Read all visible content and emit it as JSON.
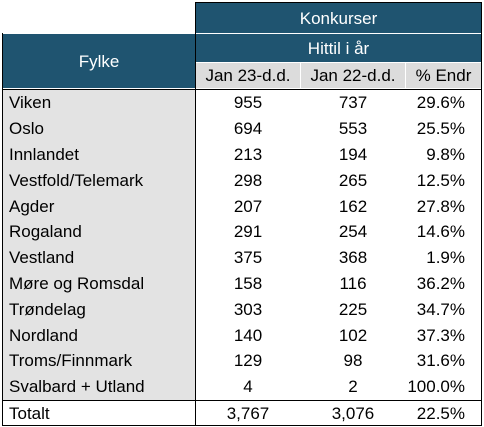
{
  "table": {
    "header_group": "Konkurser",
    "header_sub": "Hittil i år",
    "col_fylke": "Fylke",
    "columns": [
      "Jan 23-d.d.",
      "Jan 22-d.d.",
      "% Endr"
    ],
    "rows": [
      {
        "fylke": "Viken",
        "a": "955",
        "b": "737",
        "pct": "29.6%"
      },
      {
        "fylke": "Oslo",
        "a": "694",
        "b": "553",
        "pct": "25.5%"
      },
      {
        "fylke": "Innlandet",
        "a": "213",
        "b": "194",
        "pct": "9.8%"
      },
      {
        "fylke": "Vestfold/Telemark",
        "a": "298",
        "b": "265",
        "pct": "12.5%"
      },
      {
        "fylke": "Agder",
        "a": "207",
        "b": "162",
        "pct": "27.8%"
      },
      {
        "fylke": "Rogaland",
        "a": "291",
        "b": "254",
        "pct": "14.6%"
      },
      {
        "fylke": "Vestland",
        "a": "375",
        "b": "368",
        "pct": "1.9%"
      },
      {
        "fylke": "Møre og Romsdal",
        "a": "158",
        "b": "116",
        "pct": "36.2%"
      },
      {
        "fylke": "Trøndelag",
        "a": "303",
        "b": "225",
        "pct": "34.7%"
      },
      {
        "fylke": "Nordland",
        "a": "140",
        "b": "102",
        "pct": "37.3%"
      },
      {
        "fylke": "Troms/Finnmark",
        "a": "129",
        "b": "98",
        "pct": "31.6%"
      },
      {
        "fylke": "Svalbard + Utland",
        "a": "4",
        "b": "2",
        "pct": "100.0%"
      }
    ],
    "total": {
      "fylke": "Totalt",
      "a": "3,767",
      "b": "3,076",
      "pct": "22.5%"
    }
  },
  "colors": {
    "header": "#1f5470",
    "label_bg": "#e3e3e3",
    "subheader_bg": "#dcdcdc"
  }
}
